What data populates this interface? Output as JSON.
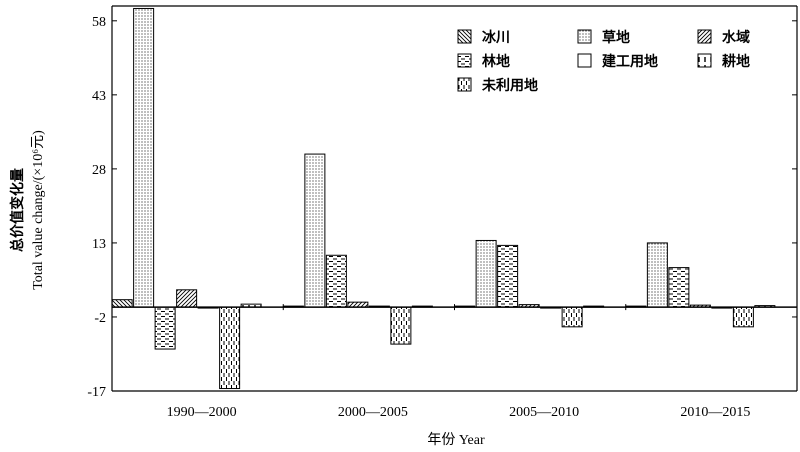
{
  "chart_data": {
    "type": "bar",
    "categories": [
      "1990—2000",
      "2000—2005",
      "2005—2010",
      "2010—2015"
    ],
    "series": [
      {
        "name": "冰川",
        "values": [
          1.5,
          0.2,
          0.1,
          0.1
        ],
        "pattern": "diag-left"
      },
      {
        "name": "草地",
        "values": [
          60.5,
          31.0,
          13.5,
          13.0
        ],
        "pattern": "dots"
      },
      {
        "name": "林地",
        "values": [
          -8.5,
          10.5,
          12.5,
          8.0
        ],
        "pattern": "hdash"
      },
      {
        "name": "水域",
        "values": [
          3.5,
          1.0,
          0.5,
          0.4
        ],
        "pattern": "diag-right"
      },
      {
        "name": "建工用地",
        "values": [
          -0.2,
          0.0,
          -0.1,
          -0.2
        ],
        "pattern": "none"
      },
      {
        "name": "未利用地",
        "values": [
          -16.5,
          -7.5,
          -4.0,
          -4.0
        ],
        "pattern": "vdash"
      },
      {
        "name": "耕地",
        "values": [
          0.6,
          0.2,
          0.1,
          0.3
        ],
        "pattern": "vtick"
      }
    ],
    "legend_order": [
      "冰川",
      "草地",
      "水域",
      "林地",
      "建工用地",
      "耕地",
      "未利用地"
    ],
    "ylim": [
      -17,
      61
    ],
    "yticks": [
      -17,
      -2,
      13,
      28,
      43,
      58
    ],
    "ylabel_cn": "总价值变化量",
    "ylabel_en": "Total value change/(×10⁶元)",
    "xlabel": "年份 Year",
    "legend_position": "top-right",
    "grid": false
  }
}
